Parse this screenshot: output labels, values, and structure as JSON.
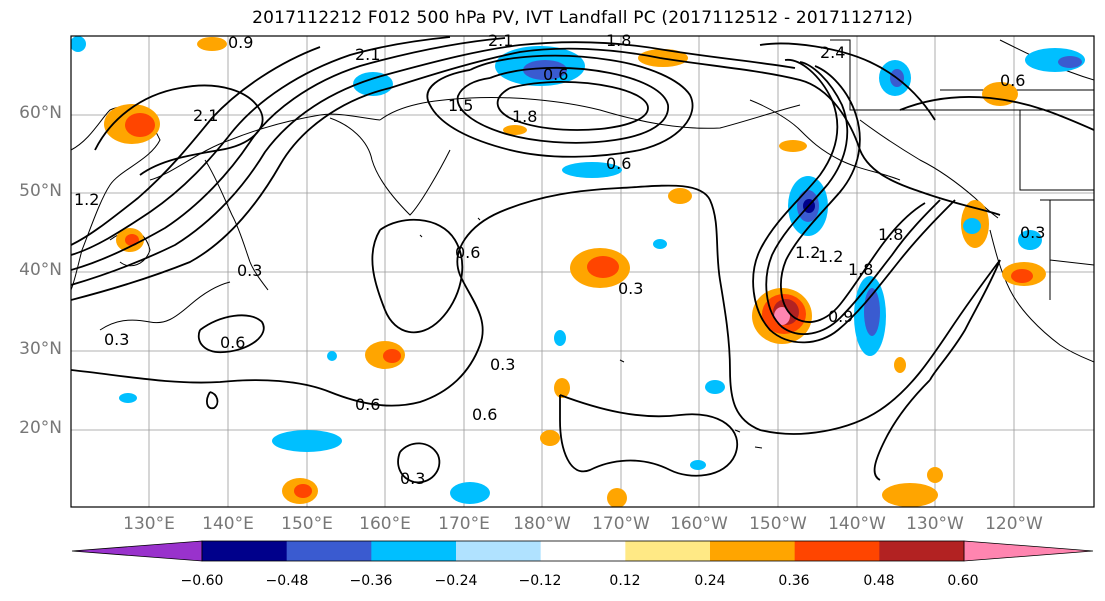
{
  "title": "2017112212 F012 500 hPa PV, IVT Landfall PC (2017112512 - 2017112712)",
  "latitude_labels": [
    "60°N",
    "50°N",
    "40°N",
    "30°N",
    "20°N"
  ],
  "longitude_labels": [
    "130°E",
    "140°E",
    "150°E",
    "160°E",
    "170°E",
    "180°W",
    "170°W",
    "160°W",
    "150°W",
    "140°W",
    "130°W",
    "120°W"
  ],
  "contour_labels": [
    "0.9",
    "2.1",
    "2.1",
    "1.8",
    "0.6",
    "1.8",
    "0.6",
    "1.5",
    "2.1",
    "1.2",
    "0.3",
    "0.6",
    "0.3",
    "0.6",
    "0.3",
    "0.6",
    "0.6",
    "0.3",
    "0.3",
    "1.2",
    "1.2",
    "1.8",
    "1.8",
    "0.9",
    "0.3",
    "2.4",
    "0.6"
  ],
  "colorbar": {
    "ticks": [
      "−0.60",
      "−0.48",
      "−0.36",
      "−0.24",
      "−0.12",
      "0.12",
      "0.24",
      "0.36",
      "0.48",
      "0.60"
    ],
    "colors": [
      "#9932cc",
      "#00008b",
      "#3a5bd0",
      "#00bfff",
      "#b0e2ff",
      "#ffffff",
      "#ffe985",
      "#ffa500",
      "#ff4500",
      "#b22222",
      "#ff85b0"
    ]
  }
}
